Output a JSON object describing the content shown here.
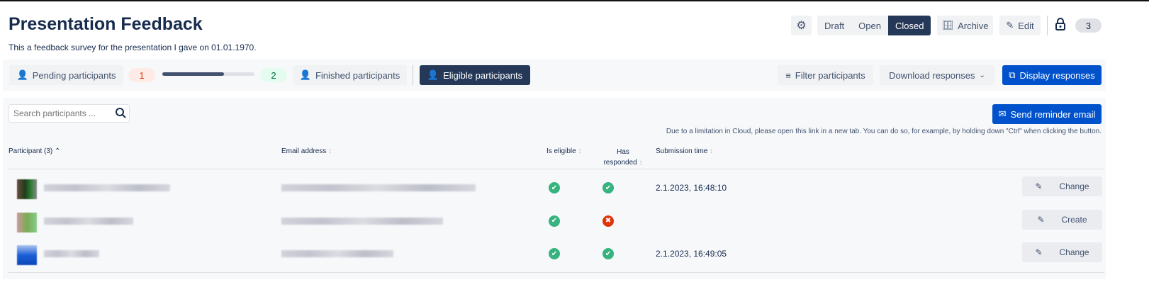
{
  "header": {
    "title": "Presentation Feedback",
    "description": "This a feedback survey for the presentation I gave on 01.01.1970."
  },
  "status": {
    "options": [
      "Draft",
      "Open",
      "Closed"
    ],
    "selected": "Closed"
  },
  "actions": {
    "archive": "Archive",
    "edit": "Edit",
    "count": "3"
  },
  "toolbar": {
    "pending": "Pending participants",
    "pending_count": "1",
    "progress": 0.67,
    "finished_count": "2",
    "finished": "Finished participants",
    "eligible": "Eligible participants",
    "filter": "Filter participants",
    "download": "Download responses",
    "display": "Display responses"
  },
  "panel": {
    "search_placeholder": "Search participants ...",
    "reminder": "Send reminder email",
    "note": "Due to a limitation in Cloud, please open this link in a new tab. You can do so, for example, by holding down \"Ctrl\" when clicking the button."
  },
  "table": {
    "headers": {
      "participant": "Participant (3)",
      "email": "Email address",
      "eligible": "Is eligible",
      "responded": "Has responded",
      "time": "Submission time"
    },
    "rows": [
      {
        "eligible": true,
        "responded": true,
        "time": "2.1.2023, 16:48:10",
        "action": "Change"
      },
      {
        "eligible": true,
        "responded": false,
        "time": "",
        "action": "Create"
      },
      {
        "eligible": true,
        "responded": true,
        "time": "2.1.2023, 16:49:05",
        "action": "Change"
      }
    ]
  },
  "colors": {
    "primary": "#0052cc",
    "dark": "#253858",
    "success": "#36b37e",
    "danger": "#de350b"
  }
}
